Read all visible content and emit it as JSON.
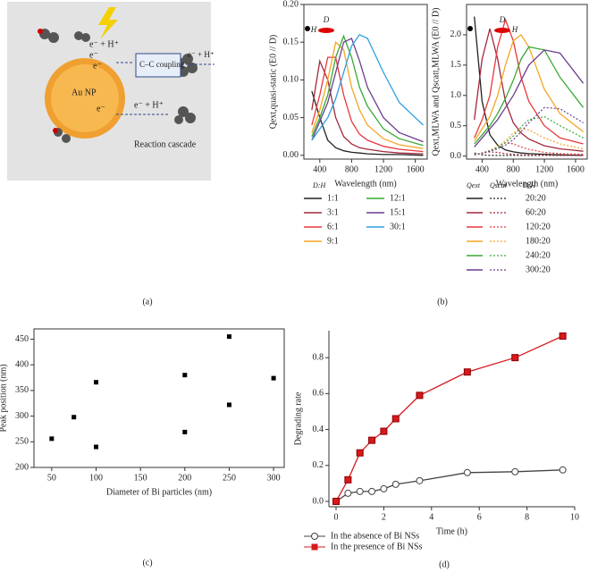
{
  "diagram": {
    "e_h_top": "e⁻ + H⁺",
    "e1": "e⁻",
    "e2": "e⁻",
    "np": "Au NP",
    "e3": "e⁻",
    "coupling": "C–C coupling",
    "e_h_right": "e⁻ + H⁺",
    "e_h_bottom": "e⁻ + H⁺",
    "cascade": "Reaction cascade"
  },
  "panel_labels": [
    "(a)",
    "(b)",
    "(c)",
    "(d)"
  ],
  "chart_data": [
    {
      "type": "line",
      "xlabel": "Wavelength (nm)",
      "ylabel": "Qext,quasi-static (E0 // D)",
      "annotations": [
        "D",
        "H"
      ],
      "legend_title": "D:H",
      "x": [
        300,
        400,
        500,
        600,
        700,
        800,
        900,
        1000,
        1200,
        1400,
        1700
      ],
      "xlim": [
        200,
        1750
      ],
      "xticks": [
        400,
        800,
        1200,
        1600
      ],
      "ylim": [
        -0.005,
        0.2
      ],
      "yticks": [
        {
          "value": 0,
          "label": "0.00"
        },
        {
          "value": 0.05,
          "label": "0.05"
        },
        {
          "value": 0.1,
          "label": "0.10"
        },
        {
          "value": 0.15,
          "label": "0.15"
        },
        {
          "value": 0.2,
          "label": "0.20"
        }
      ],
      "series": [
        {
          "name": "1:1",
          "color": "#222222",
          "values": [
            0.085,
            0.05,
            0.02,
            0.01,
            0.006,
            0.004,
            0.003,
            0.002,
            0.001,
            0.001,
            0
          ]
        },
        {
          "name": "3:1",
          "color": "#a0283c",
          "values": [
            0.06,
            0.125,
            0.1,
            0.05,
            0.025,
            0.015,
            0.01,
            0.008,
            0.005,
            0.003,
            0.002
          ]
        },
        {
          "name": "6:1",
          "color": "#e8383d",
          "values": [
            0.04,
            0.08,
            0.13,
            0.13,
            0.08,
            0.045,
            0.028,
            0.02,
            0.012,
            0.008,
            0.005
          ]
        },
        {
          "name": "9:1",
          "color": "#f5a623",
          "values": [
            0.03,
            0.06,
            0.1,
            0.15,
            0.14,
            0.09,
            0.06,
            0.04,
            0.022,
            0.014,
            0.009
          ]
        },
        {
          "name": "12:1",
          "color": "#3aa935",
          "values": [
            0.025,
            0.05,
            0.08,
            0.13,
            0.158,
            0.13,
            0.09,
            0.065,
            0.035,
            0.022,
            0.013
          ]
        },
        {
          "name": "15:1",
          "color": "#6a3d8f",
          "values": [
            0.02,
            0.045,
            0.07,
            0.11,
            0.15,
            0.155,
            0.125,
            0.09,
            0.05,
            0.03,
            0.018
          ]
        },
        {
          "name": "30:1",
          "color": "#2e9fe0",
          "values": [
            0.02,
            0.035,
            0.05,
            0.075,
            0.11,
            0.145,
            0.16,
            0.155,
            0.11,
            0.07,
            0.04
          ]
        }
      ]
    },
    {
      "type": "line",
      "xlabel": "Wavelength (nm)",
      "ylabel": "Qext,MLWA and Qscatt,MLWA (E0 // D)",
      "annotations": [
        "D",
        "H"
      ],
      "legend_headers": [
        "Qext",
        "Qscat",
        "D:H"
      ],
      "x": [
        300,
        400,
        500,
        600,
        700,
        800,
        900,
        1000,
        1200,
        1400,
        1700
      ],
      "xlim": [
        200,
        1750
      ],
      "xticks": [
        400,
        800,
        1200,
        1600
      ],
      "ylim": [
        -0.05,
        2.5
      ],
      "yticks": [
        {
          "value": 0,
          "label": "0.0"
        },
        {
          "value": 0.5,
          "label": "0.5"
        },
        {
          "value": 1,
          "label": "1.0"
        },
        {
          "value": 1.5,
          "label": "1.5"
        },
        {
          "value": 2,
          "label": "2.0"
        }
      ],
      "series": [
        {
          "name": "20:20",
          "color": "#222222",
          "values": [
            2.3,
            0.9,
            0.35,
            0.18,
            0.1,
            0.07,
            0.05,
            0.04,
            0.03,
            0.02,
            0.01
          ],
          "scat_values": [
            0.05,
            0.02,
            0.01,
            0.01,
            0.01,
            0.01,
            0.01,
            0.01,
            0.01,
            0.01,
            0.01
          ]
        },
        {
          "name": "60:20",
          "color": "#a0283c",
          "values": [
            0.6,
            1.6,
            2.1,
            1.6,
            0.9,
            0.55,
            0.38,
            0.28,
            0.17,
            0.12,
            0.08
          ],
          "scat_values": [
            0.02,
            0.05,
            0.07,
            0.06,
            0.04,
            0.03,
            0.02,
            0.02,
            0.01,
            0.01,
            0.01
          ]
        },
        {
          "name": "120:20",
          "color": "#e8383d",
          "values": [
            0.3,
            0.6,
            1.0,
            1.8,
            2.25,
            1.9,
            1.3,
            0.9,
            0.5,
            0.3,
            0.2
          ],
          "scat_values": [
            0.02,
            0.04,
            0.08,
            0.16,
            0.22,
            0.2,
            0.15,
            0.11,
            0.06,
            0.04,
            0.03
          ]
        },
        {
          "name": "180:20",
          "color": "#f5a623",
          "values": [
            0.25,
            0.45,
            0.65,
            1.0,
            1.5,
            1.9,
            2.0,
            1.8,
            1.1,
            0.7,
            0.4
          ],
          "scat_values": [
            0.02,
            0.05,
            0.09,
            0.15,
            0.25,
            0.38,
            0.45,
            0.43,
            0.3,
            0.2,
            0.12
          ]
        },
        {
          "name": "240:20",
          "color": "#3aa935",
          "values": [
            0.2,
            0.35,
            0.5,
            0.7,
            0.95,
            1.25,
            1.6,
            1.8,
            1.75,
            1.3,
            0.8
          ],
          "scat_values": [
            0.02,
            0.05,
            0.09,
            0.14,
            0.22,
            0.33,
            0.48,
            0.6,
            0.65,
            0.5,
            0.3
          ]
        },
        {
          "name": "300:20",
          "color": "#6a3d8f",
          "values": [
            0.15,
            0.3,
            0.45,
            0.6,
            0.8,
            1.0,
            1.25,
            1.5,
            1.75,
            1.7,
            1.2
          ],
          "scat_values": [
            0.02,
            0.05,
            0.08,
            0.12,
            0.18,
            0.27,
            0.4,
            0.55,
            0.8,
            0.78,
            0.55
          ]
        }
      ]
    },
    {
      "type": "scatter",
      "xlabel": "Diameter of Bi particles (nm)",
      "ylabel": "Peak position (nm)",
      "color": "#000000",
      "x": [
        50,
        75,
        100,
        100,
        200,
        200,
        250,
        250,
        300
      ],
      "values": [
        256,
        298,
        240,
        366,
        380,
        269,
        455,
        322,
        374
      ],
      "xlim": [
        30,
        312
      ],
      "xticks": [
        50,
        100,
        150,
        200,
        250,
        300
      ],
      "ylim": [
        200,
        470
      ],
      "yticks": [
        200,
        250,
        300,
        350,
        400,
        450
      ]
    },
    {
      "type": "line",
      "xlabel": "Time (h)",
      "ylabel": "Degrading rate",
      "xlim": [
        -0.3,
        10
      ],
      "xticks": [
        0,
        2,
        4,
        6,
        8,
        10
      ],
      "ylim": [
        -0.03,
        0.95
      ],
      "yticks": [
        {
          "value": 0,
          "label": "0.0"
        },
        {
          "value": 0.2,
          "label": "0.2"
        },
        {
          "value": 0.4,
          "label": "0.4"
        },
        {
          "value": 0.6,
          "label": "0.6"
        },
        {
          "value": 0.8,
          "label": "0.8"
        }
      ],
      "x": [
        0,
        0.5,
        1,
        1.5,
        2,
        2.5,
        3.5,
        5.5,
        7.5,
        9.5
      ],
      "series": [
        {
          "name": "In the absence of Bi NSs",
          "color": "#444444",
          "marker": "circle",
          "values": [
            0,
            0.045,
            0.055,
            0.055,
            0.07,
            0.095,
            0.115,
            0.16,
            0.165,
            0.175
          ]
        },
        {
          "name": "In the presence of Bi NSs",
          "color": "#d7191c",
          "marker": "square",
          "values": [
            0,
            0.12,
            0.27,
            0.34,
            0.39,
            0.46,
            0.59,
            0.72,
            0.8,
            0.92
          ]
        }
      ]
    }
  ]
}
